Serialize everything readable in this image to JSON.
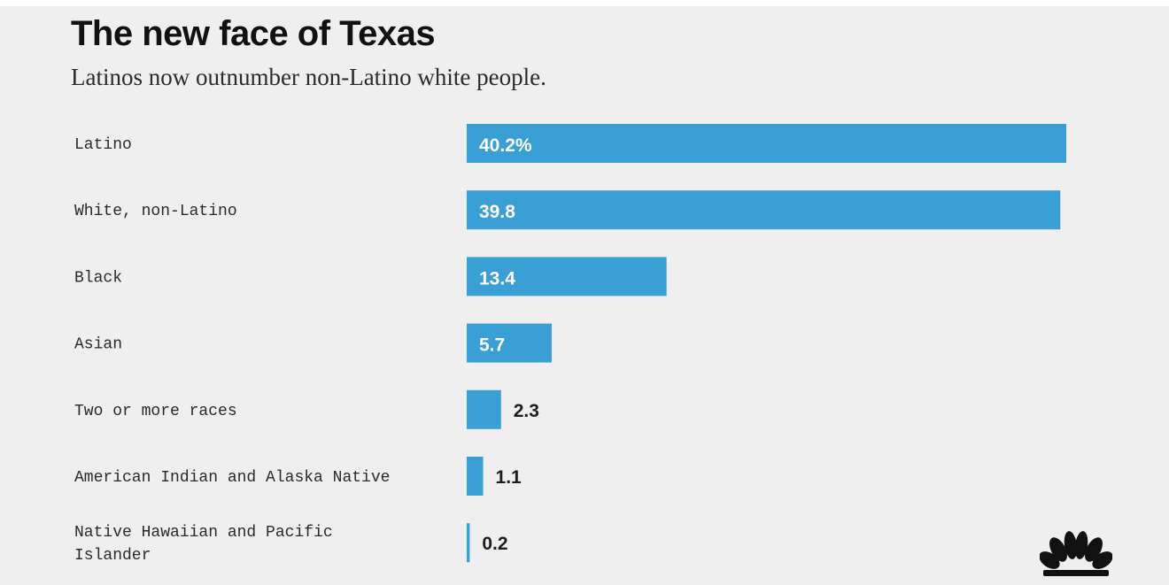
{
  "header": {
    "title": "The new face of Texas",
    "subtitle": "Latinos now outnumber non-Latino white people."
  },
  "logo": {
    "icon": "peacock-logo-icon"
  },
  "chart_data": {
    "type": "bar",
    "orientation": "horizontal",
    "title": "The new face of Texas",
    "subtitle": "Latinos now outnumber non-Latino white people.",
    "categories": [
      "Latino",
      "White, non-Latino",
      "Black",
      "Asian",
      "Two or more races",
      "American Indian and Alaska Native",
      "Native Hawaiian and Pacific Islander"
    ],
    "values": [
      40.2,
      39.8,
      13.4,
      5.7,
      2.3,
      1.1,
      0.2
    ],
    "value_labels": [
      "40.2%",
      "39.8",
      "13.4",
      "5.7",
      "2.3",
      "1.1",
      "0.2"
    ],
    "bar_color": "#3a9fd5",
    "xlim": [
      0,
      40.2
    ],
    "grid": false,
    "legend": "none"
  }
}
